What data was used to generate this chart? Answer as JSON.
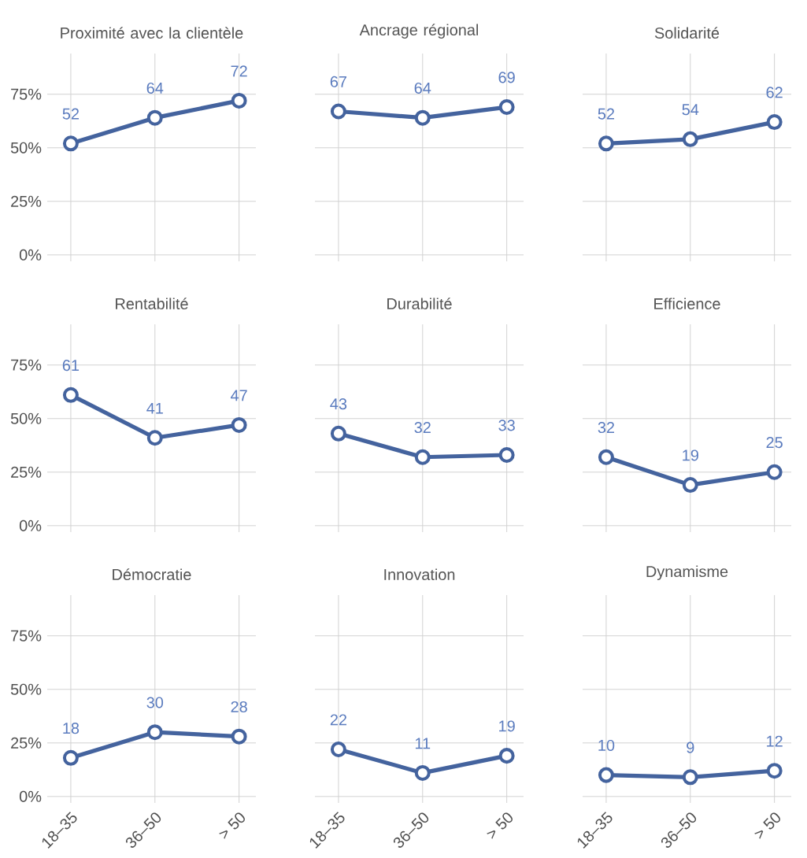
{
  "chart_data": [
    {
      "type": "line",
      "title": "Proximité avec la clientèle",
      "categories": [
        null,
        null,
        null
      ],
      "series": [
        {
          "color": "#44639e",
          "values": [
            52,
            64,
            72
          ]
        }
      ],
      "ylim": [
        -3,
        94
      ],
      "yticks": [
        {
          "value": 0,
          "label": "0%"
        },
        {
          "value": 25,
          "label": "25%"
        },
        {
          "value": 50,
          "label": "50%"
        },
        {
          "value": 75,
          "label": "75%"
        }
      ],
      "data_labels": true,
      "grid": true,
      "marker": "circle",
      "tick_labels": "y"
    },
    {
      "type": "line",
      "title": "Ancrage régional",
      "categories": [
        null,
        null,
        null
      ],
      "series": [
        {
          "color": "#44639e",
          "values": [
            67,
            64,
            69
          ]
        }
      ],
      "data_labels": true,
      "grid": true,
      "marker": "circle",
      "tick_labels": false
    },
    {
      "type": "line",
      "title": "Solidarité",
      "categories": [
        null,
        null,
        null
      ],
      "series": [
        {
          "color": "#44639e",
          "values": [
            52,
            54,
            62
          ]
        }
      ],
      "data_labels": true,
      "grid": true,
      "marker": "circle",
      "tick_labels": false
    },
    {
      "type": "line",
      "title": "Rentabilité",
      "categories": [
        null,
        null,
        null
      ],
      "series": [
        {
          "color": "#44639e",
          "values": [
            61,
            41,
            47
          ]
        }
      ],
      "ylim": [
        -3,
        94
      ],
      "yticks": [
        {
          "value": 0,
          "label": "0%"
        },
        {
          "value": 25,
          "label": "25%"
        },
        {
          "value": 50,
          "label": "50%"
        },
        {
          "value": 75,
          "label": "75%"
        }
      ],
      "data_labels": true,
      "grid": true,
      "marker": "circle",
      "tick_labels": "y"
    },
    {
      "type": "line",
      "title": "Durabilité",
      "categories": [
        null,
        null,
        null
      ],
      "series": [
        {
          "color": "#44639e",
          "values": [
            43,
            32,
            33
          ]
        }
      ],
      "data_labels": true,
      "grid": true,
      "marker": "circle",
      "tick_labels": false
    },
    {
      "type": "line",
      "title": "Efficience",
      "categories": [
        null,
        null,
        null
      ],
      "series": [
        {
          "color": "#44639e",
          "values": [
            32,
            19,
            25
          ]
        }
      ],
      "data_labels": true,
      "grid": true,
      "marker": "circle",
      "tick_labels": false
    },
    {
      "type": "line",
      "title": "Démocratie",
      "categories": [
        "18–35",
        "36–50",
        "> 50"
      ],
      "series": [
        {
          "color": "#44639e",
          "values": [
            18,
            30,
            28
          ]
        }
      ],
      "ylim": [
        -3,
        94
      ],
      "yticks": [
        {
          "value": 0,
          "label": "0%"
        },
        {
          "value": 25,
          "label": "25%"
        },
        {
          "value": 50,
          "label": "50%"
        },
        {
          "value": 75,
          "label": "75%"
        }
      ],
      "data_labels": true,
      "grid": true,
      "marker": "circle"
    },
    {
      "type": "line",
      "title": "Innovation",
      "categories": [
        "18–35",
        "36–50",
        "> 50"
      ],
      "series": [
        {
          "color": "#44639e",
          "values": [
            22,
            11,
            19
          ]
        }
      ],
      "data_labels": true,
      "grid": true,
      "marker": "circle",
      "tick_labels": "x"
    },
    {
      "type": "line",
      "title": "Dynamisme",
      "categories": [
        "18–35",
        "36–50",
        "> 50"
      ],
      "series": [
        {
          "color": "#44639e",
          "values": [
            10,
            9,
            12
          ]
        }
      ],
      "data_labels": true,
      "grid": true,
      "marker": "circle",
      "tick_labels": "x"
    }
  ]
}
